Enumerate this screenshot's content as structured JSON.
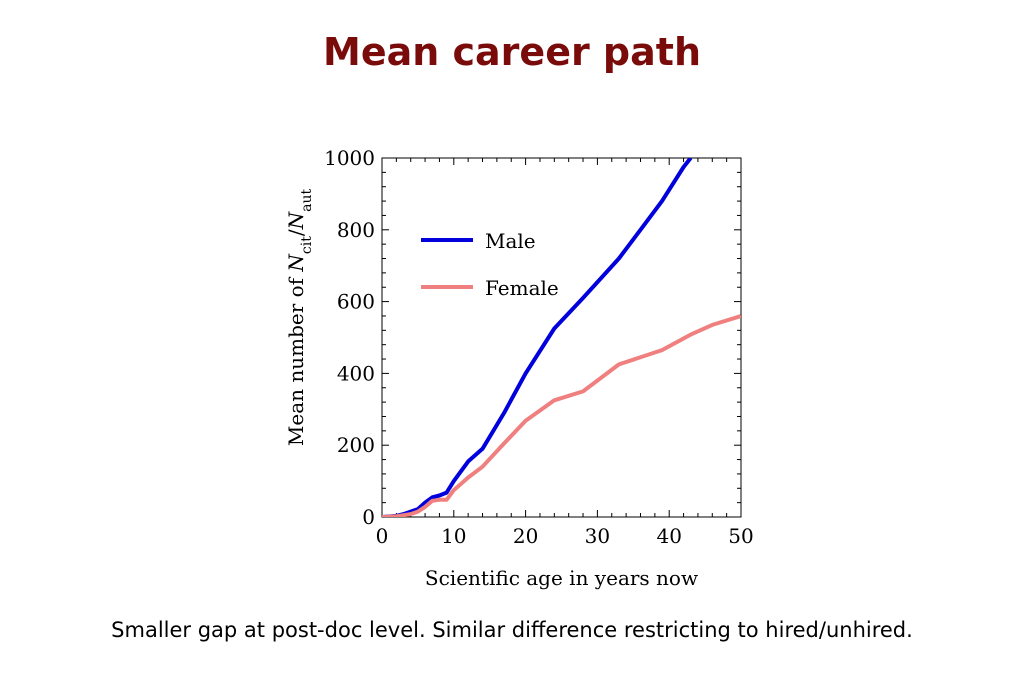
{
  "slide": {
    "title": "Mean career path",
    "caption": "Smaller gap at post-doc level. Similar difference restricting to hired/unhired.",
    "title_color": "#7a0b0b"
  },
  "chart_data": {
    "type": "line",
    "xlabel": "Scientific age in years now",
    "ylabel": {
      "prefix": "Mean number of ",
      "var1": "N",
      "sub1": "cit",
      "slash": "/",
      "var2": "N",
      "sub2": "aut"
    },
    "xlim": [
      0,
      50
    ],
    "ylim": [
      0,
      1000
    ],
    "xticks": [
      0,
      10,
      20,
      30,
      40,
      50
    ],
    "yticks": [
      0,
      200,
      400,
      600,
      800,
      1000
    ],
    "legend_position": "top-left",
    "grid": false,
    "series": [
      {
        "name": "Male",
        "color": "#0000dd",
        "x": [
          0,
          2,
          3,
          4,
          5,
          6,
          7,
          8,
          9,
          10,
          12,
          14,
          17,
          20,
          24,
          28,
          33,
          36,
          39,
          42,
          43
        ],
        "y": [
          0,
          3,
          8,
          15,
          22,
          40,
          55,
          60,
          68,
          100,
          155,
          190,
          290,
          400,
          525,
          610,
          720,
          800,
          880,
          975,
          1000
        ]
      },
      {
        "name": "Female",
        "color": "#f08080",
        "x": [
          0,
          2,
          4,
          5,
          6,
          7,
          8,
          9,
          10,
          12,
          14,
          17,
          20,
          24,
          28,
          33,
          39,
          43,
          46,
          50
        ],
        "y": [
          0,
          2,
          8,
          15,
          28,
          45,
          48,
          48,
          75,
          110,
          140,
          205,
          268,
          325,
          350,
          425,
          465,
          508,
          535,
          560
        ]
      }
    ]
  }
}
